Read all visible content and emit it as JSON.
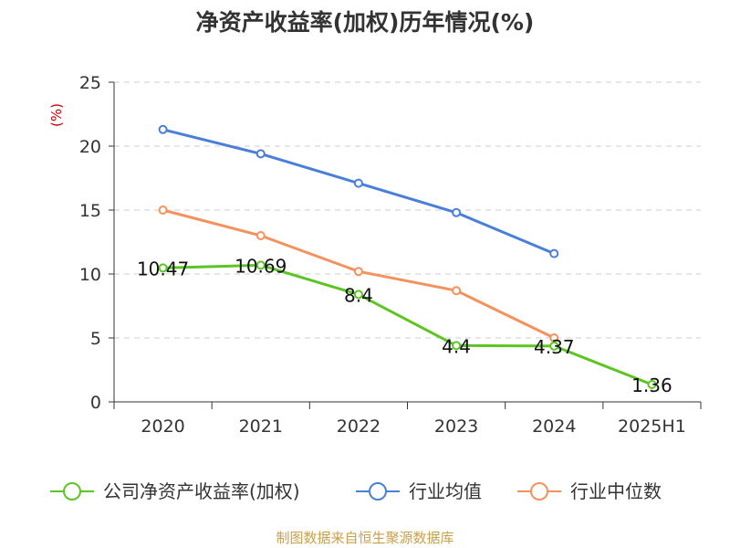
{
  "chart_data": {
    "type": "line",
    "title": "净资产收益率(加权)历年情况(%)",
    "ylabel": "(%)",
    "xlabel": "",
    "categories": [
      "2020",
      "2021",
      "2022",
      "2023",
      "2024",
      "2025H1"
    ],
    "ylim": [
      0,
      25
    ],
    "yticks": [
      0,
      5,
      10,
      15,
      20,
      25
    ],
    "grid": true,
    "legend_position": "bottom",
    "series": [
      {
        "name": "公司净资产收益率(加权)",
        "color": "#5cc523",
        "values": [
          10.47,
          10.69,
          8.4,
          4.4,
          4.37,
          1.36
        ],
        "labels": [
          "10.47",
          "10.69",
          "8.4",
          "4.4",
          "4.37",
          "1.36"
        ]
      },
      {
        "name": "行业均值",
        "color": "#4a7fd8",
        "values": [
          21.3,
          19.4,
          17.1,
          14.8,
          11.6,
          null
        ]
      },
      {
        "name": "行业中位数",
        "color": "#f5915c",
        "values": [
          15.0,
          13.0,
          10.2,
          8.7,
          5.0,
          null
        ]
      }
    ]
  },
  "footer": {
    "source": "制图数据来自恒生聚源数据库"
  }
}
